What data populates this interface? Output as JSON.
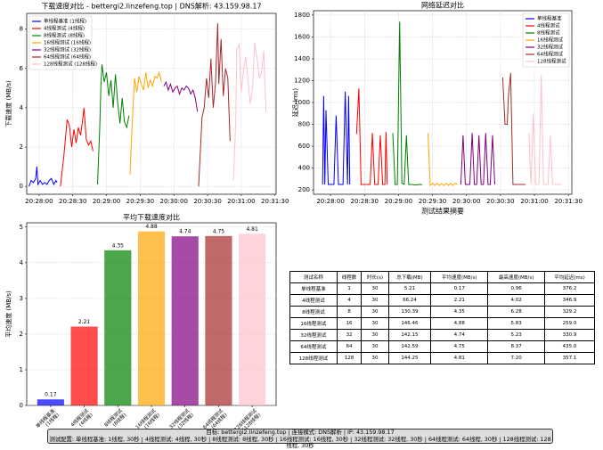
{
  "chart_data": [
    {
      "type": "line",
      "title": "下载速度对比 - bettergi2.linzefeng.top | DNS解析: 43.159.98.17",
      "ylabel": "下载速度 (MB/s)",
      "xlim": [
        "20:27:49",
        "20:31:31"
      ],
      "xticks": [
        "20:28:00",
        "20:28:30",
        "20:29:00",
        "20:29:30",
        "20:30:00",
        "20:30:30",
        "20:31:00",
        "20:31:30"
      ],
      "ylim": [
        -0.4,
        8.8
      ],
      "yticks": [
        0,
        2,
        4,
        6,
        8
      ],
      "grid": true,
      "legend": "upper left",
      "series": [
        {
          "name": "单线程基准 (1线程)",
          "color": "#0000ff",
          "x": [
            "20:27:51",
            "20:27:53",
            "20:27:55",
            "20:27:57",
            "20:27:58",
            "20:27:59",
            "20:28:01",
            "20:28:03",
            "20:28:05",
            "20:28:07",
            "20:28:09",
            "20:28:11",
            "20:28:13",
            "20:28:15",
            "20:28:16"
          ],
          "values": [
            0.0,
            0.3,
            0.2,
            0.4,
            1.0,
            0.1,
            0.3,
            0.1,
            0.2,
            0.1,
            0.3,
            0.4,
            0.1,
            0.3,
            0.2
          ]
        },
        {
          "name": "4线程测试 (4线程)",
          "color": "#ff0000",
          "x": [
            "20:28:19",
            "20:28:22",
            "20:28:25",
            "20:28:27",
            "20:28:29",
            "20:28:31",
            "20:28:33",
            "20:28:35",
            "20:28:37",
            "20:28:39",
            "20:28:40",
            "20:28:42",
            "20:28:44",
            "20:28:46",
            "20:28:48"
          ],
          "values": [
            0.0,
            1.5,
            3.4,
            3.1,
            2.0,
            2.9,
            2.2,
            3.0,
            2.6,
            3.5,
            4.0,
            2.4,
            2.1,
            2.3,
            1.8
          ]
        },
        {
          "name": "8线程测试 (8线程)",
          "color": "#008000",
          "x": [
            "20:28:52",
            "20:28:54",
            "20:28:55",
            "20:28:56",
            "20:28:58",
            "20:29:00",
            "20:29:02",
            "20:29:04",
            "20:29:06",
            "20:29:08",
            "20:29:10",
            "20:29:12",
            "20:29:14",
            "20:29:16",
            "20:29:18",
            "20:29:20"
          ],
          "values": [
            0.1,
            3.0,
            5.0,
            6.2,
            5.3,
            5.8,
            4.6,
            5.4,
            4.0,
            5.7,
            4.2,
            3.2,
            4.5,
            3.3,
            3.0,
            3.6
          ]
        },
        {
          "name": "16线程测试 (16线程)",
          "color": "#ffa500",
          "x": [
            "20:29:21",
            "20:29:23",
            "20:29:25",
            "20:29:27",
            "20:29:29",
            "20:29:31",
            "20:29:33",
            "20:29:35",
            "20:29:37",
            "20:29:39",
            "20:29:41",
            "20:29:43",
            "20:29:45",
            "20:29:47",
            "20:29:49"
          ],
          "values": [
            0.6,
            3.4,
            5.5,
            4.8,
            5.6,
            5.2,
            4.9,
            5.8,
            5.0,
            5.4,
            5.1,
            5.6,
            5.5,
            5.8,
            5.3
          ]
        },
        {
          "name": "32线程测试 (32线程)",
          "color": "#800080",
          "x": [
            "20:29:51",
            "20:29:53",
            "20:29:55",
            "20:29:57",
            "20:29:59",
            "20:30:01",
            "20:30:03",
            "20:30:05",
            "20:30:07",
            "20:30:09",
            "20:30:11",
            "20:30:13",
            "20:30:15",
            "20:30:17",
            "20:30:19",
            "20:30:21"
          ],
          "values": [
            5.1,
            5.3,
            4.9,
            5.2,
            4.8,
            5.0,
            5.1,
            4.7,
            5.0,
            4.9,
            5.1,
            5.0,
            4.7,
            4.9,
            4.5,
            3.8
          ]
        },
        {
          "name": "64线程测试 (64线程)",
          "color": "#a52a2a",
          "x": [
            "20:30:22",
            "20:30:25",
            "20:30:27",
            "20:30:29",
            "20:30:31",
            "20:30:33",
            "20:30:35",
            "20:30:37",
            "20:30:39",
            "20:30:40",
            "20:30:42",
            "20:30:44",
            "20:30:46",
            "20:30:48",
            "20:30:50"
          ],
          "values": [
            0.0,
            3.5,
            4.0,
            5.5,
            4.5,
            6.5,
            4.0,
            5.2,
            8.3,
            5.2,
            7.5,
            4.6,
            6.0,
            5.5,
            2.3
          ]
        },
        {
          "name": "128线程测试 (128线程)",
          "color": "#ffc0cb",
          "x": [
            "20:30:53",
            "20:30:55",
            "20:30:56",
            "20:30:58",
            "20:31:00",
            "20:31:02",
            "20:31:04",
            "20:31:06",
            "20:31:08",
            "20:31:10",
            "20:31:12",
            "20:31:14",
            "20:31:16",
            "20:31:18",
            "20:31:20",
            "20:31:22"
          ],
          "values": [
            0.3,
            3.2,
            7.0,
            7.2,
            4.8,
            5.9,
            6.6,
            5.4,
            4.2,
            5.0,
            7.3,
            6.5,
            5.5,
            5.8,
            6.9,
            3.8
          ]
        }
      ]
    },
    {
      "type": "line",
      "title": "网络延迟对比",
      "ylabel": "延迟 (ms)",
      "xlim": [
        "20:27:45",
        "20:31:33"
      ],
      "xticks": [
        "20:28:00",
        "20:28:30",
        "20:29:00",
        "20:29:30",
        "20:30:00",
        "20:30:30",
        "20:31:00",
        "20:31:30"
      ],
      "ylim": [
        160,
        1840
      ],
      "yticks": [
        200,
        400,
        600,
        800,
        1000,
        1200,
        1400,
        1600,
        1800
      ],
      "grid": true,
      "legend": "upper right",
      "series": [
        {
          "name": "单线程基准",
          "color": "#0000ff",
          "x": [
            "20:27:53",
            "20:27:54",
            "20:27:55",
            "20:27:56",
            "20:27:58",
            "20:28:03",
            "20:28:05",
            "20:28:07",
            "20:28:11",
            "20:28:13",
            "20:28:15",
            "20:28:16",
            "20:28:17"
          ],
          "values": [
            250,
            1060,
            250,
            930,
            250,
            250,
            880,
            250,
            250,
            1100,
            250,
            1060,
            250
          ]
        },
        {
          "name": "4线程测试",
          "color": "#ff0000",
          "x": [
            "20:28:23",
            "20:28:25",
            "20:28:27",
            "20:28:35",
            "20:28:37",
            "20:28:39",
            "20:28:42",
            "20:28:44",
            "20:28:46",
            "20:28:48",
            "20:28:49",
            "20:28:50"
          ],
          "values": [
            710,
            1130,
            250,
            250,
            720,
            250,
            250,
            700,
            250,
            250,
            730,
            250
          ]
        },
        {
          "name": "8线程测试",
          "color": "#008000",
          "x": [
            "20:28:55",
            "20:28:57",
            "20:28:59",
            "20:29:01",
            "20:29:03",
            "20:29:05",
            "20:29:07",
            "20:29:09",
            "20:29:12",
            "20:29:15",
            "20:29:18",
            "20:29:21"
          ],
          "values": [
            720,
            250,
            250,
            1740,
            260,
            250,
            700,
            250,
            250,
            245,
            250,
            248
          ]
        },
        {
          "name": "16线程测试",
          "color": "#ffa500",
          "x": [
            "20:29:26",
            "20:29:28",
            "20:29:30",
            "20:29:32",
            "20:29:34",
            "20:29:36",
            "20:29:38",
            "20:29:40",
            "20:29:42",
            "20:29:44",
            "20:29:46",
            "20:29:48",
            "20:29:50",
            "20:29:52"
          ],
          "values": [
            720,
            240,
            260,
            240,
            260,
            240,
            260,
            240,
            260,
            240,
            260,
            240,
            260,
            250
          ]
        },
        {
          "name": "32线程测试",
          "color": "#800080",
          "x": [
            "20:29:55",
            "20:29:57",
            "20:29:59",
            "20:30:03",
            "20:30:05",
            "20:30:07",
            "20:30:09",
            "20:30:11",
            "20:30:13",
            "20:30:15",
            "20:30:17",
            "20:30:19",
            "20:30:21",
            "20:30:23",
            "20:30:25"
          ],
          "values": [
            250,
            700,
            250,
            250,
            720,
            250,
            250,
            700,
            250,
            250,
            720,
            250,
            250,
            700,
            250
          ]
        },
        {
          "name": "64线程测试",
          "color": "#a52a2a",
          "x": [
            "20:30:32",
            "20:30:34",
            "20:30:36",
            "20:30:37",
            "20:30:39",
            "20:30:41",
            "20:30:45",
            "20:30:47",
            "20:30:50",
            "20:30:52"
          ],
          "values": [
            1230,
            800,
            800,
            1060,
            1270,
            250,
            250,
            250,
            250,
            250
          ]
        },
        {
          "name": "128线程测试",
          "color": "#ffc0cb",
          "x": [
            "20:30:55",
            "20:30:57",
            "20:30:59",
            "20:31:01",
            "20:31:04",
            "20:31:06",
            "20:31:08",
            "20:31:12",
            "20:31:14",
            "20:31:16",
            "20:31:20",
            "20:31:24"
          ],
          "values": [
            720,
            250,
            900,
            250,
            250,
            1250,
            250,
            250,
            700,
            250,
            250,
            250
          ]
        }
      ]
    },
    {
      "type": "bar",
      "title": "平均下载速度对比",
      "ylabel": "平均速度 (MB/s)",
      "categories": [
        [
          "单线程基准",
          "(1线程)"
        ],
        [
          "4线程测试",
          "(4线程)"
        ],
        [
          "8线程测试",
          "(8线程)"
        ],
        [
          "16线程测试",
          "(16线程)"
        ],
        [
          "32线程测试",
          "(32线程)"
        ],
        [
          "64线程测试",
          "(64线程)"
        ],
        [
          "128线程测试",
          "(128线程)"
        ]
      ],
      "values": [
        0.17,
        2.21,
        4.35,
        4.88,
        4.74,
        4.75,
        4.81
      ],
      "colors": [
        "#0000ff",
        "#ff0000",
        "#008000",
        "#ffa500",
        "#800080",
        "#a52a2a",
        "#ffc0cb"
      ],
      "opacity": 0.7,
      "ylim": [
        0,
        5.12
      ],
      "yticks": [
        0,
        1,
        2,
        3,
        4,
        5
      ],
      "grid": true
    }
  ],
  "table": {
    "title": "测试结果摘要",
    "header": [
      "测试名称",
      "线程数",
      "时长(s)",
      "总下载(MB)",
      "平均速度(MB/s)",
      "最高速度(MB/s)",
      "平均延迟(ms)"
    ],
    "rows": [
      [
        "单线程基准",
        "1",
        "30",
        "5.21",
        "0.17",
        "0.96",
        "376.2"
      ],
      [
        "4线程测试",
        "4",
        "30",
        "66.24",
        "2.21",
        "4.02",
        "346.9"
      ],
      [
        "8线程测试",
        "8",
        "30",
        "130.39",
        "4.35",
        "6.28",
        "329.2"
      ],
      [
        "16线程测试",
        "16",
        "30",
        "146.46",
        "4.88",
        "5.83",
        "259.0"
      ],
      [
        "32线程测试",
        "32",
        "30",
        "142.15",
        "4.74",
        "5.23",
        "330.9"
      ],
      [
        "64线程测试",
        "64",
        "30",
        "142.59",
        "4.75",
        "8.37",
        "435.0"
      ],
      [
        "128线程测试",
        "128",
        "30",
        "144.25",
        "4.81",
        "7.20",
        "357.1"
      ]
    ]
  },
  "footer": {
    "line1": "目标: bettergi2.linzefeng.top | 连接模式: DNS解析 | IP: 43.159.98.17",
    "line2": "测试配置: 单线程基准: 1线程, 30秒 | 4线程测试: 4线程, 30秒 | 8线程测试: 8线程, 30秒 | 16线程测试: 16线程, 30秒 | 32线程测试: 32线程, 30秒 | 64线程测试: 64线程, 30秒 | 128线程测试: 128线程, 30秒"
  }
}
